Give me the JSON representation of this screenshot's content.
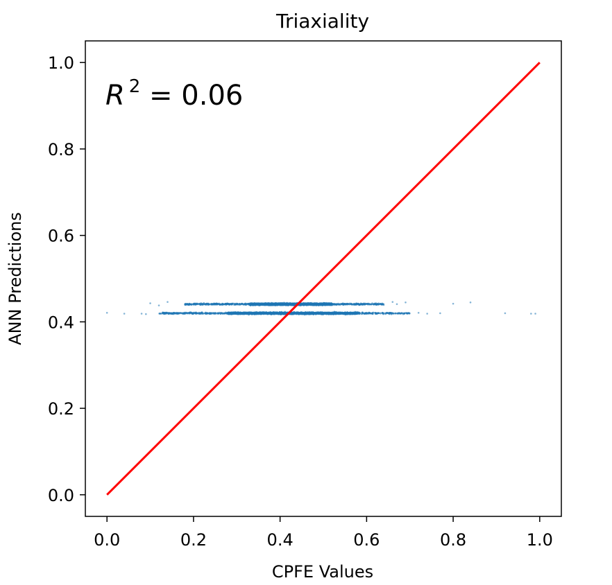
{
  "chart_data": {
    "type": "scatter",
    "title": "Triaxiality",
    "xlabel": "CPFE Values",
    "ylabel": "ANN Predictions",
    "xlim": [
      -0.05,
      1.05
    ],
    "ylim": [
      -0.05,
      1.05
    ],
    "xticks": [
      "0.0",
      "0.2",
      "0.4",
      "0.6",
      "0.8",
      "1.0"
    ],
    "yticks": [
      "0.0",
      "0.2",
      "0.4",
      "0.6",
      "0.8",
      "1.0"
    ],
    "xtick_values": [
      0.0,
      0.2,
      0.4,
      0.6,
      0.8,
      1.0
    ],
    "ytick_values": [
      0.0,
      0.2,
      0.4,
      0.6,
      0.8,
      1.0
    ],
    "annotation": {
      "base": "R",
      "exponent": "2",
      "rest": " = 0.06"
    },
    "reference_line": {
      "x": [
        0.0,
        1.0
      ],
      "y": [
        0.0,
        1.0
      ],
      "color": "#ff0000"
    },
    "scatter_color": "#1f77b4",
    "series": [
      {
        "clusters": [
          {
            "y": 0.441,
            "x_min": 0.18,
            "x_max": 0.64,
            "core_min": 0.33,
            "core_max": 0.52
          },
          {
            "y": 0.42,
            "x_min": 0.12,
            "x_max": 0.7,
            "core_min": 0.28,
            "core_max": 0.58
          }
        ],
        "points": [
          [
            0.0,
            0.421
          ],
          [
            0.04,
            0.419
          ],
          [
            0.08,
            0.419
          ],
          [
            0.09,
            0.418
          ],
          [
            0.1,
            0.443
          ],
          [
            0.12,
            0.438
          ],
          [
            0.14,
            0.446
          ],
          [
            0.66,
            0.446
          ],
          [
            0.67,
            0.441
          ],
          [
            0.69,
            0.445
          ],
          [
            0.72,
            0.421
          ],
          [
            0.74,
            0.419
          ],
          [
            0.77,
            0.42
          ],
          [
            0.8,
            0.442
          ],
          [
            0.84,
            0.445
          ],
          [
            0.92,
            0.42
          ],
          [
            0.98,
            0.419
          ],
          [
            0.99,
            0.419
          ]
        ]
      }
    ]
  }
}
